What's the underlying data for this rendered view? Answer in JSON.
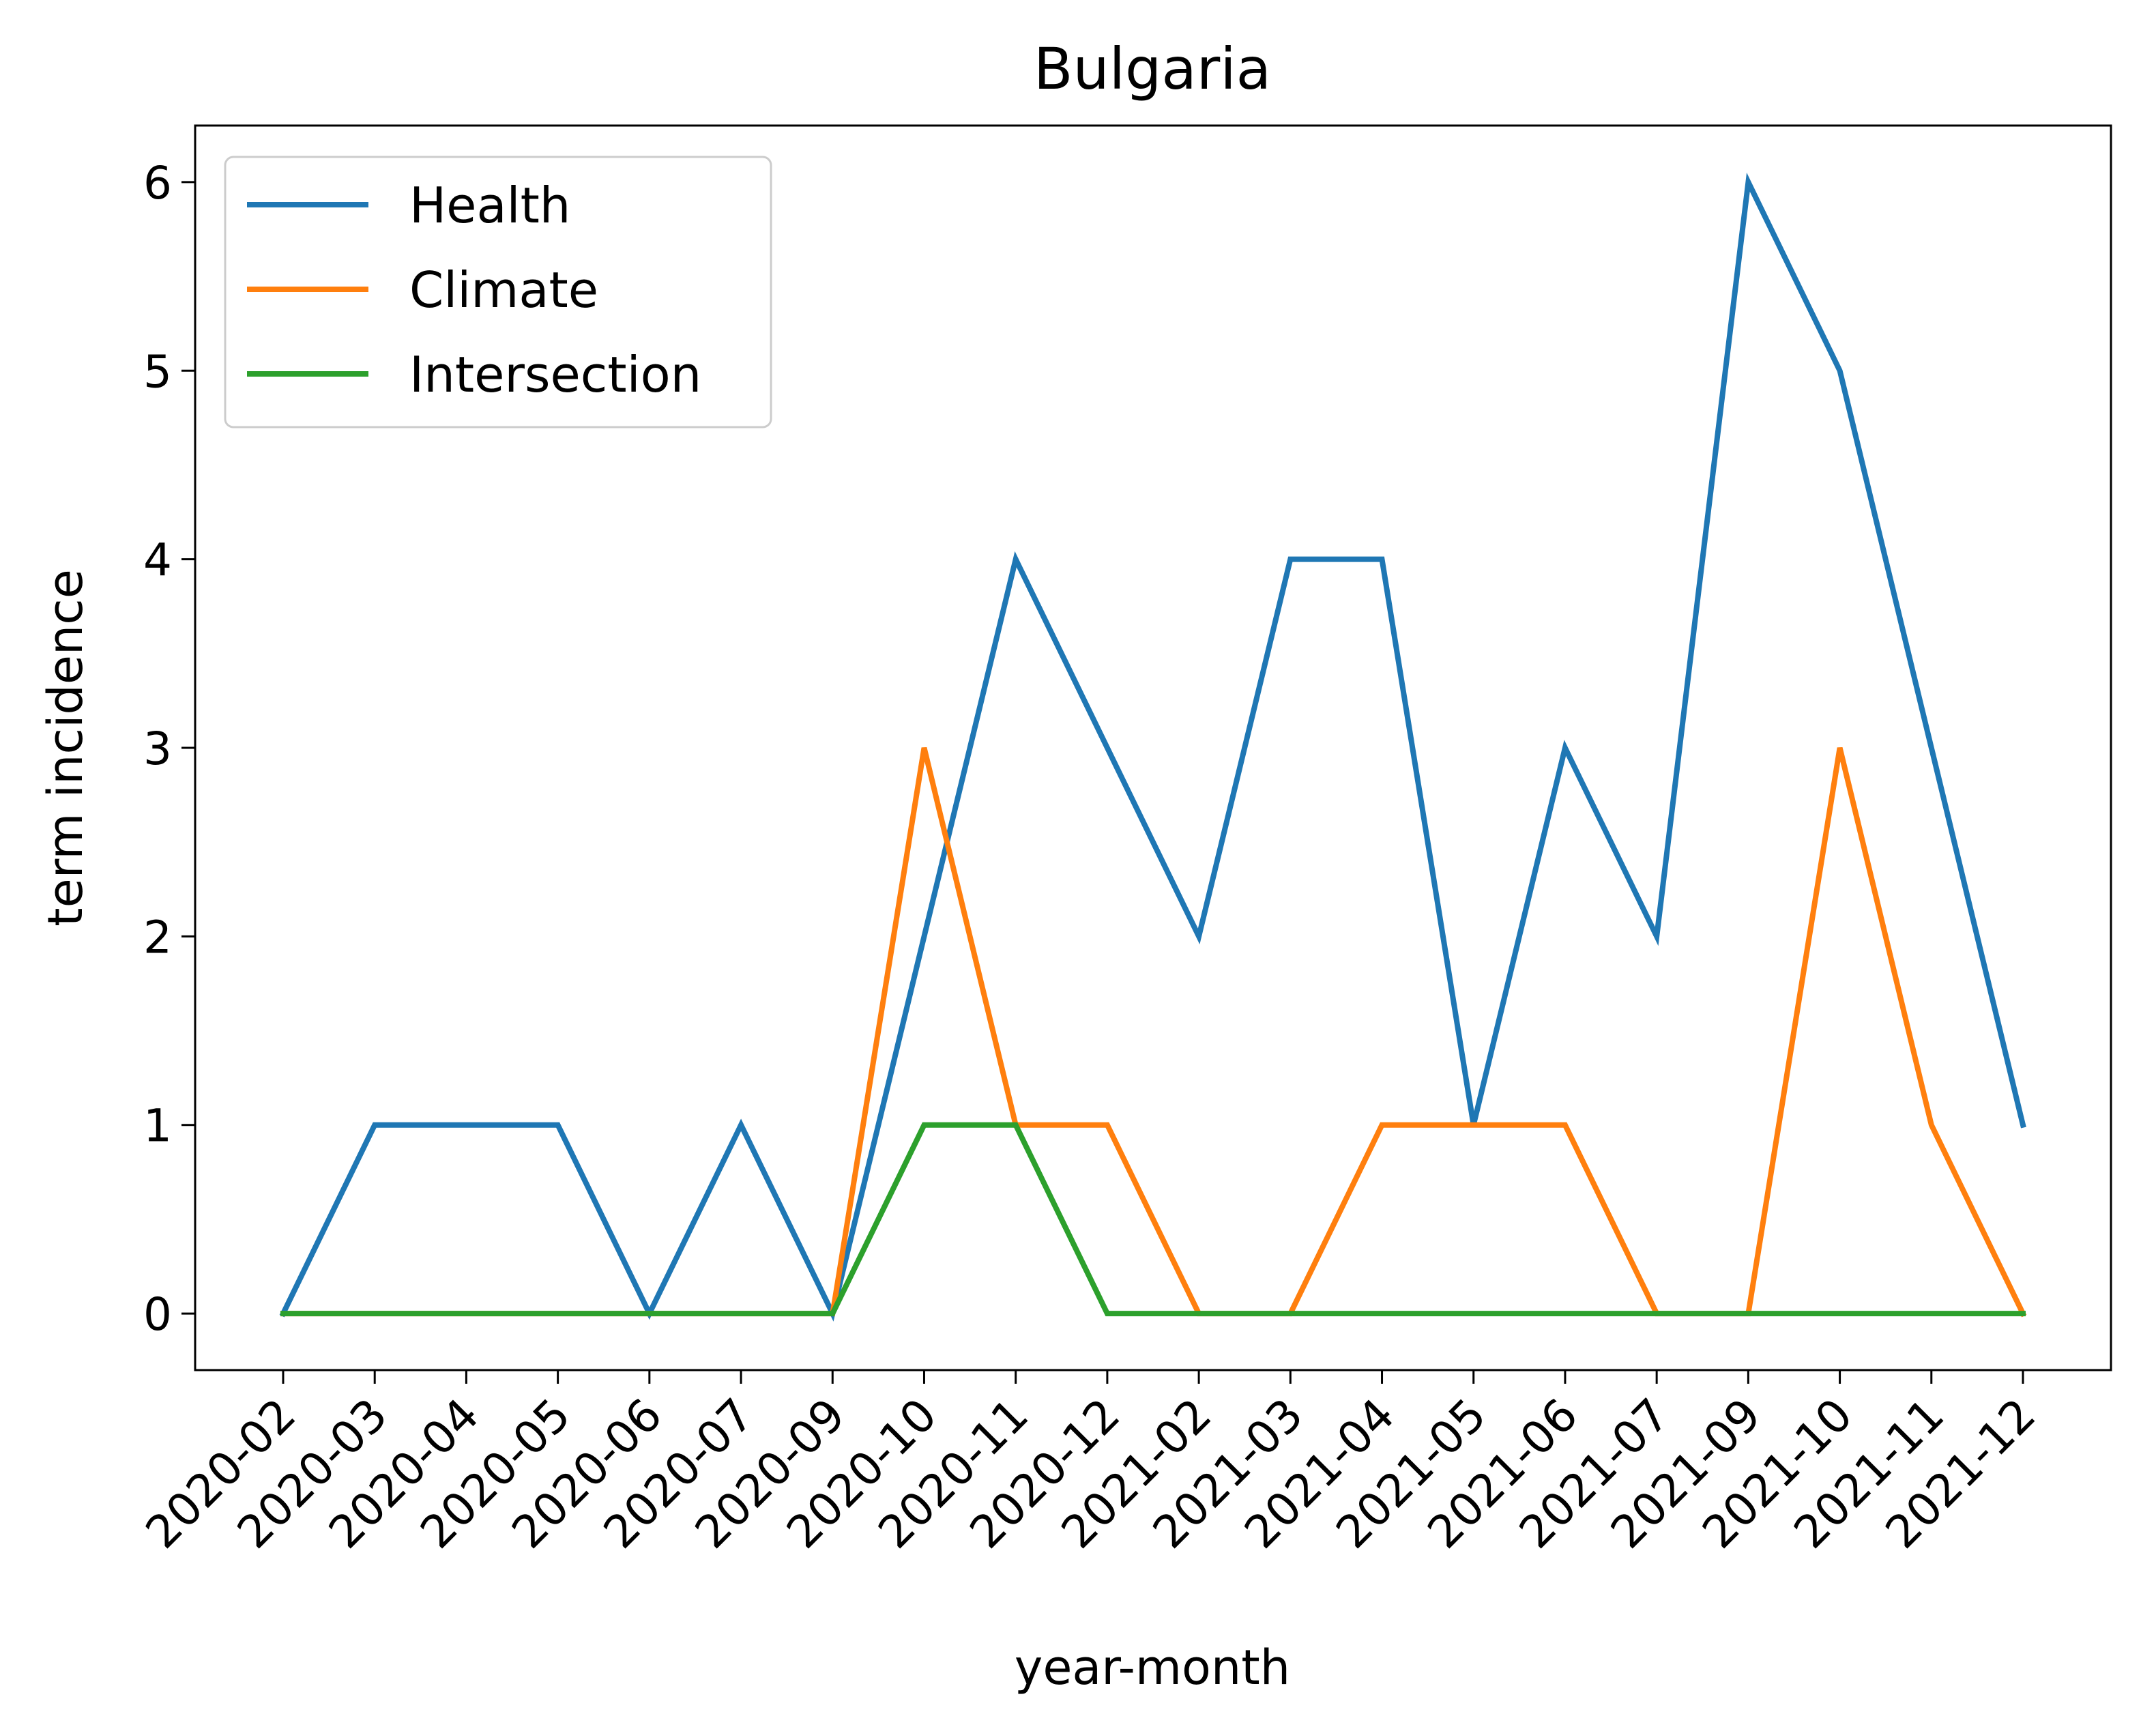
{
  "chart_data": {
    "type": "line",
    "title": "Bulgaria",
    "xlabel": "year-month",
    "ylabel": "term incidence",
    "categories": [
      "2020-02",
      "2020-03",
      "2020-04",
      "2020-05",
      "2020-06",
      "2020-07",
      "2020-09",
      "2020-10",
      "2020-11",
      "2020-12",
      "2021-02",
      "2021-03",
      "2021-04",
      "2021-05",
      "2021-06",
      "2021-07",
      "2021-09",
      "2021-10",
      "2021-11",
      "2021-12"
    ],
    "yticks": [
      0,
      1,
      2,
      3,
      4,
      5,
      6
    ],
    "ylim": [
      -0.3,
      6.3
    ],
    "grid": false,
    "legend_position": "top-left",
    "series": [
      {
        "name": "Health",
        "color": "#1f77b4",
        "values": [
          0,
          1,
          1,
          1,
          0,
          1,
          0,
          2,
          4,
          3,
          2,
          4,
          4,
          1,
          3,
          2,
          6,
          5,
          3,
          1
        ]
      },
      {
        "name": "Climate",
        "color": "#ff7f0e",
        "values": [
          0,
          0,
          0,
          0,
          0,
          0,
          0,
          3,
          1,
          1,
          0,
          0,
          1,
          1,
          1,
          0,
          0,
          3,
          1,
          0
        ]
      },
      {
        "name": "Intersection",
        "color": "#2ca02c",
        "values": [
          0,
          0,
          0,
          0,
          0,
          0,
          0,
          1,
          1,
          0,
          0,
          0,
          0,
          0,
          0,
          0,
          0,
          0,
          0,
          0
        ]
      }
    ]
  }
}
